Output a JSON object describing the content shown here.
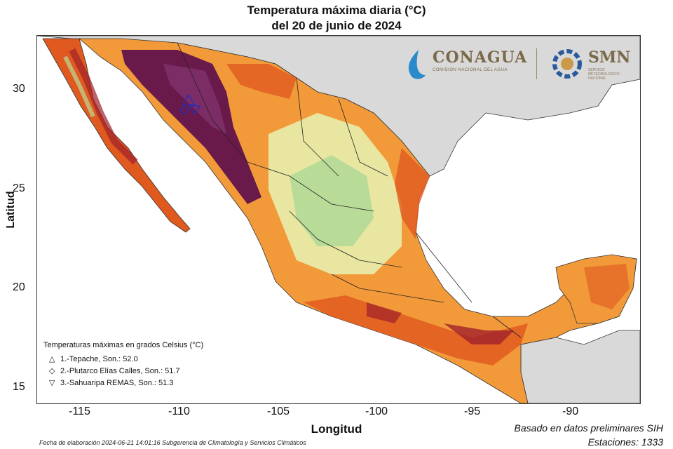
{
  "title": {
    "line1": "Temperatura máxima diaria (°C)",
    "line2": "del 20 de junio de 2024"
  },
  "axes": {
    "ylabel": "Latitud",
    "xlabel": "Longitud",
    "yticks": [
      "30",
      "25",
      "20",
      "15"
    ],
    "xticks": [
      "-115",
      "-110",
      "-105",
      "-100",
      "-95",
      "-90"
    ]
  },
  "logos": {
    "conagua": "CONAGUA",
    "conagua_sub": "COMISIÓN NACIONAL DEL AGUA",
    "smn": "SMN",
    "smn_sub": "SERVICIO METEOROLÓGICO NACIONAL"
  },
  "legend": {
    "title": "Temperaturas máximas en grados Celsius (°C)",
    "items": [
      {
        "symbol": "△",
        "text": "1.-Tepache, Son.: 52.0"
      },
      {
        "symbol": "◇",
        "text": "2.-Plutarco Elías Calles, Son.: 51.7"
      },
      {
        "symbol": "▽",
        "text": "3.-Sahuaripa REMAS, Son.: 51.3"
      }
    ]
  },
  "notes": {
    "source": "Basado en datos preliminares SIH",
    "stations": "Estaciones:  1333",
    "footer": "Fecha de elaboración 2024-06-21 14:01:16 Subgerencia de Climatología y Servicios Climáticos"
  },
  "colors": {
    "ocean": "#ffffff",
    "land_other": "#d9d9d9",
    "hot_extreme": "#6a1a4a",
    "hot_very": "#a0202a",
    "hot": "#e05a20",
    "warm": "#f29a3a",
    "mild": "#f8c878",
    "cool": "#e8e6a0",
    "cooler": "#b8dc98"
  }
}
